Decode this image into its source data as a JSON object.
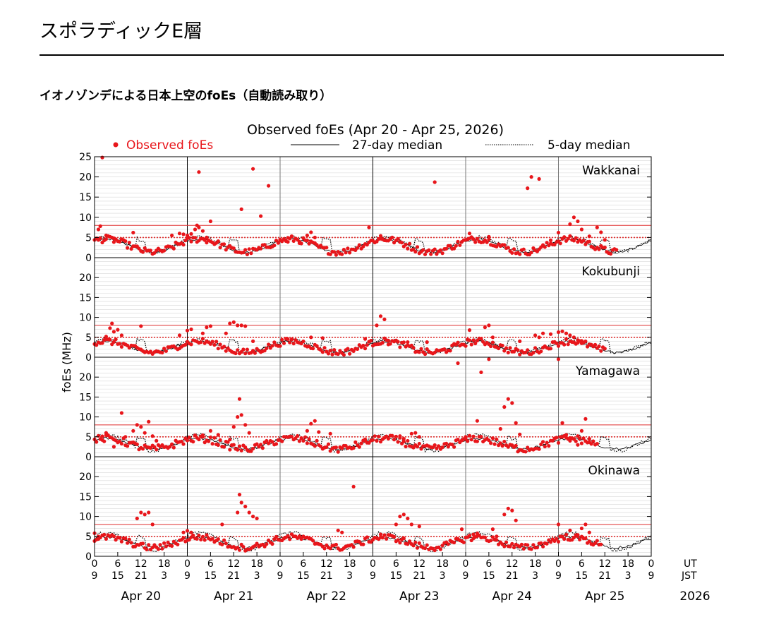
{
  "page": {
    "title": "スポラディックE層",
    "subtitle": "イオノゾンデによる日本上空のfoEs（自動読み取り）"
  },
  "chart_data": {
    "type": "scatter",
    "title": "Observed foEs (Apr 20 - Apr 25, 2026)",
    "ylabel": "foEs (MHz)",
    "ylim": [
      0,
      25
    ],
    "yticks_top": [
      0,
      5,
      10,
      15,
      20,
      25
    ],
    "yticks": [
      0,
      5,
      10,
      15,
      20
    ],
    "xlim_hours": [
      0,
      144
    ],
    "legend": {
      "position": "top",
      "observed": "Observed foEs",
      "median27": "27-day median",
      "median5": "5-day median"
    },
    "colors": {
      "observed": "#e8161b",
      "threshold": "#e03030",
      "grid": "#d8d8d8"
    },
    "thresholds": {
      "solid": 8,
      "dotted": 5
    },
    "ut_tick_labels": [
      "0",
      "6",
      "12",
      "18",
      "0",
      "6",
      "12",
      "18",
      "0",
      "6",
      "12",
      "18",
      "0",
      "6",
      "12",
      "18",
      "0",
      "6",
      "12",
      "18",
      "0",
      "6",
      "12",
      "18",
      "0"
    ],
    "jst_tick_labels": [
      "9",
      "15",
      "21",
      "3",
      "9",
      "15",
      "21",
      "3",
      "9",
      "15",
      "21",
      "3",
      "9",
      "15",
      "21",
      "3",
      "9",
      "15",
      "21",
      "3",
      "9",
      "15",
      "21",
      "3",
      "9"
    ],
    "ut_label": "UT",
    "jst_label": "JST",
    "dates": [
      "Apr 20",
      "Apr 21",
      "Apr 22",
      "Apr 23",
      "Apr 24",
      "Apr 25"
    ],
    "year": "2026",
    "stations": [
      {
        "name": "Wakkanai",
        "data_end_hour": 135,
        "base": 3.0,
        "amp": 1.6,
        "m5_amp": 1.9,
        "noise": 0.8,
        "spikes": [
          [
            1,
            7.0
          ],
          [
            1.5,
            7.8
          ],
          [
            3,
            5.5
          ],
          [
            5,
            4.8
          ],
          [
            10,
            6.2
          ],
          [
            20,
            5.5
          ],
          [
            22,
            6.0
          ],
          [
            23,
            5.8
          ],
          [
            24,
            5.5
          ],
          [
            25,
            5.9
          ],
          [
            26,
            7.0
          ],
          [
            26.5,
            8.0
          ],
          [
            27,
            7.5
          ],
          [
            28,
            6.6
          ],
          [
            29,
            5.0
          ],
          [
            30,
            9.0
          ],
          [
            38,
            12.0
          ],
          [
            41,
            22.0
          ],
          [
            43,
            10.3
          ],
          [
            45,
            17.8
          ],
          [
            48,
            4.3
          ],
          [
            50,
            3.9
          ],
          [
            53,
            3.6
          ],
          [
            55,
            5.5
          ],
          [
            56,
            6.3
          ],
          [
            57,
            5.0
          ],
          [
            71,
            7.5
          ],
          [
            74,
            5.4
          ],
          [
            88,
            18.7
          ],
          [
            97,
            6.0
          ],
          [
            102,
            5.2
          ],
          [
            112,
            17.2
          ],
          [
            113,
            20.0
          ],
          [
            115,
            19.5
          ],
          [
            118,
            4.3
          ],
          [
            120,
            6.2
          ],
          [
            123,
            8.3
          ],
          [
            124,
            10.0
          ],
          [
            125,
            9.0
          ],
          [
            126,
            7.0
          ],
          [
            128,
            5.3
          ],
          [
            130,
            7.5
          ],
          [
            131,
            6.3
          ],
          [
            132,
            4.4
          ]
        ],
        "high": [
          [
            2,
            24.8
          ],
          [
            27,
            21.2
          ]
        ]
      },
      {
        "name": "Kokubunji",
        "data_end_hour": 132,
        "base": 2.6,
        "amp": 1.4,
        "m5_amp": 1.7,
        "noise": 0.8,
        "spikes": [
          [
            3,
            5.2
          ],
          [
            4,
            7.3
          ],
          [
            4.5,
            8.5
          ],
          [
            5,
            6.4
          ],
          [
            6,
            6.9
          ],
          [
            7,
            5.5
          ],
          [
            12,
            7.8
          ],
          [
            22,
            5.5
          ],
          [
            24,
            6.7
          ],
          [
            25,
            7.0
          ],
          [
            28,
            6.0
          ],
          [
            29,
            7.5
          ],
          [
            30,
            7.8
          ],
          [
            34,
            6.0
          ],
          [
            35,
            8.5
          ],
          [
            36,
            8.8
          ],
          [
            37,
            8.0
          ],
          [
            38,
            8.0
          ],
          [
            39,
            7.8
          ],
          [
            41,
            4.0
          ],
          [
            51,
            4.5
          ],
          [
            56,
            5.0
          ],
          [
            59,
            4.8
          ],
          [
            70,
            4.6
          ],
          [
            73,
            8.0
          ],
          [
            74,
            10.3
          ],
          [
            75,
            9.5
          ],
          [
            76,
            4.2
          ],
          [
            81,
            3.8
          ],
          [
            86,
            3.8
          ],
          [
            97,
            6.8
          ],
          [
            101,
            7.5
          ],
          [
            102,
            8.0
          ],
          [
            103,
            5.0
          ],
          [
            110,
            4.0
          ],
          [
            114,
            5.5
          ],
          [
            115,
            5.0
          ],
          [
            116,
            6.0
          ],
          [
            118,
            5.8
          ],
          [
            120,
            6.3
          ],
          [
            121,
            6.5
          ],
          [
            122,
            6.0
          ],
          [
            123,
            5.5
          ],
          [
            124,
            5.0
          ],
          [
            125,
            4.3
          ],
          [
            126,
            3.5
          ]
        ],
        "high": []
      },
      {
        "name": "Yamagawa",
        "data_end_hour": 130,
        "base": 3.3,
        "amp": 1.3,
        "m5_amp": 2.0,
        "noise": 0.9,
        "spikes": [
          [
            2,
            4.2
          ],
          [
            3,
            6.0
          ],
          [
            5,
            2.5
          ],
          [
            7,
            11.0
          ],
          [
            8,
            5.0
          ],
          [
            10,
            6.5
          ],
          [
            11,
            8.0
          ],
          [
            12,
            7.5
          ],
          [
            13,
            6.0
          ],
          [
            14,
            8.8
          ],
          [
            15,
            5.2
          ],
          [
            16,
            4.0
          ],
          [
            28,
            5.0
          ],
          [
            30,
            6.5
          ],
          [
            32,
            5.5
          ],
          [
            35,
            4.3
          ],
          [
            36,
            7.5
          ],
          [
            37,
            10.0
          ],
          [
            37.5,
            14.5
          ],
          [
            38,
            10.5
          ],
          [
            39,
            8.0
          ],
          [
            40,
            6.0
          ],
          [
            55,
            6.5
          ],
          [
            56,
            8.3
          ],
          [
            57,
            9.0
          ],
          [
            58,
            6.2
          ],
          [
            61,
            5.8
          ],
          [
            70,
            4.0
          ],
          [
            79,
            5.2
          ],
          [
            80,
            4.5
          ],
          [
            82,
            5.8
          ],
          [
            83,
            6.0
          ],
          [
            84,
            5.0
          ],
          [
            96,
            4.5
          ],
          [
            99,
            9.0
          ],
          [
            105,
            7.0
          ],
          [
            106,
            12.5
          ],
          [
            107,
            14.5
          ],
          [
            108,
            13.5
          ],
          [
            109,
            8.5
          ],
          [
            110,
            5.6
          ],
          [
            121,
            8.5
          ],
          [
            122,
            5.5
          ],
          [
            123,
            4.0
          ],
          [
            125,
            3.0
          ],
          [
            126,
            6.5
          ],
          [
            127,
            9.5
          ],
          [
            128,
            4.5
          ]
        ],
        "high": [
          [
            94,
            23.5
          ],
          [
            100,
            21.2
          ],
          [
            102,
            24.5
          ],
          [
            120,
            24.5
          ]
        ]
      },
      {
        "name": "Okinawa",
        "data_end_hour": 131,
        "base": 3.5,
        "amp": 1.3,
        "m5_amp": 2.2,
        "noise": 0.8,
        "spikes": [
          [
            0,
            5.8
          ],
          [
            1,
            5.0
          ],
          [
            11,
            9.5
          ],
          [
            12,
            11.0
          ],
          [
            13,
            10.5
          ],
          [
            14,
            11.0
          ],
          [
            15,
            8.0
          ],
          [
            23,
            6.0
          ],
          [
            24,
            6.4
          ],
          [
            25,
            6.0
          ],
          [
            33,
            8.0
          ],
          [
            37,
            11.0
          ],
          [
            37.5,
            15.5
          ],
          [
            38,
            13.5
          ],
          [
            39,
            12.5
          ],
          [
            40,
            11.0
          ],
          [
            41,
            10.0
          ],
          [
            42,
            9.5
          ],
          [
            63,
            6.5
          ],
          [
            64,
            6.0
          ],
          [
            67,
            17.5
          ],
          [
            74,
            5.5
          ],
          [
            78,
            8.0
          ],
          [
            79,
            10.0
          ],
          [
            80,
            10.5
          ],
          [
            81,
            9.5
          ],
          [
            82,
            8.0
          ],
          [
            84,
            7.5
          ],
          [
            95,
            6.8
          ],
          [
            98,
            5.5
          ],
          [
            99,
            5.8
          ],
          [
            103,
            6.8
          ],
          [
            104,
            5.0
          ],
          [
            106,
            10.5
          ],
          [
            107,
            12.0
          ],
          [
            108,
            11.5
          ],
          [
            109,
            9.0
          ],
          [
            120,
            8.0
          ],
          [
            123,
            6.5
          ],
          [
            125,
            5.0
          ],
          [
            126,
            7.0
          ],
          [
            127,
            8.0
          ],
          [
            128,
            6.0
          ]
        ],
        "high": []
      }
    ]
  }
}
